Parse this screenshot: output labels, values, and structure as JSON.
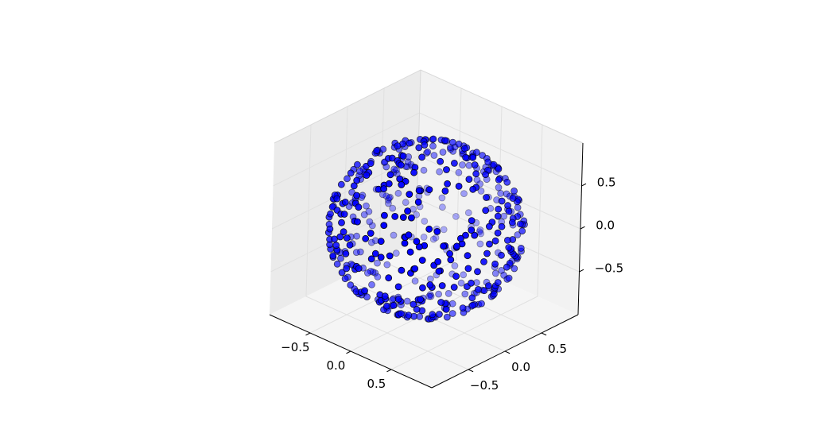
{
  "chart_data": {
    "type": "scatter3d",
    "title": "",
    "xlabel": "",
    "ylabel": "",
    "zlabel": "",
    "xlim": [
      -1,
      1
    ],
    "ylim": [
      -1,
      1
    ],
    "zlim": [
      -1,
      1
    ],
    "x_ticks": [
      {
        "value": -0.5,
        "label": "−0.5"
      },
      {
        "value": 0.0,
        "label": "0.0"
      },
      {
        "value": 0.5,
        "label": "0.5"
      }
    ],
    "y_ticks": [
      {
        "value": -0.5,
        "label": "−0.5"
      },
      {
        "value": 0.0,
        "label": "0.0"
      },
      {
        "value": 0.5,
        "label": "0.5"
      }
    ],
    "z_ticks": [
      {
        "value": -0.5,
        "label": "−0.5"
      },
      {
        "value": 0.0,
        "label": "0.0"
      },
      {
        "value": 0.5,
        "label": "0.5"
      }
    ],
    "grid": true,
    "pane_color": "#f2f2f2",
    "marker_color": "#0000ff",
    "marker_edge_color": "#000000",
    "elevation_deg": 30,
    "azimuth_deg": -60,
    "series": [
      {
        "distribution": "points on unit sphere",
        "count": 500
      }
    ]
  }
}
